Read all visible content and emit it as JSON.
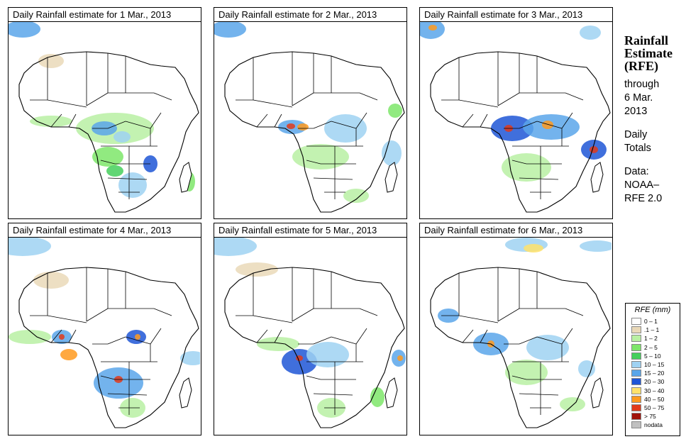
{
  "panels": [
    {
      "title": "Daily Rainfall estimate for  1 Mar., 2013"
    },
    {
      "title": "Daily Rainfall estimate for  2 Mar., 2013"
    },
    {
      "title": "Daily Rainfall estimate for  3 Mar., 2013"
    },
    {
      "title": "Daily Rainfall estimate for  4 Mar., 2013"
    },
    {
      "title": "Daily Rainfall estimate for  5 Mar., 2013"
    },
    {
      "title": "Daily Rainfall estimate for  6 Mar., 2013"
    }
  ],
  "sidebar": {
    "title_line1": "Rainfall",
    "title_line2": "Estimate",
    "title_line3": "(RFE)",
    "line_through": "through",
    "line_date1": "6 Mar.",
    "line_date2": "2013",
    "line_daily": "Daily",
    "line_totals": "Totals",
    "line_data": "Data:",
    "line_source1": "NOAA–",
    "line_source2": "RFE 2.0"
  },
  "legend": {
    "title": "RFE (mm)",
    "items": [
      {
        "label": "0 – 1",
        "color": "#ffffff"
      },
      {
        "label": ".1 – 1",
        "color": "#ead9b8"
      },
      {
        "label": "1 – 2",
        "color": "#b9f0a3"
      },
      {
        "label": "2 – 5",
        "color": "#7ee66a"
      },
      {
        "label": "5 – 10",
        "color": "#45cf5c"
      },
      {
        "label": "10 – 15",
        "color": "#9fd2f2"
      },
      {
        "label": "15 – 20",
        "color": "#5aa6ea"
      },
      {
        "label": "20 – 30",
        "color": "#1f56d6"
      },
      {
        "label": "30 – 40",
        "color": "#ffe26a"
      },
      {
        "label": "40 – 50",
        "color": "#ff9a1e"
      },
      {
        "label": "50 – 75",
        "color": "#e23a1a"
      },
      {
        "label": "> 75",
        "color": "#a0140c"
      },
      {
        "label": "nodata",
        "color": "#c0c0c0"
      }
    ]
  }
}
